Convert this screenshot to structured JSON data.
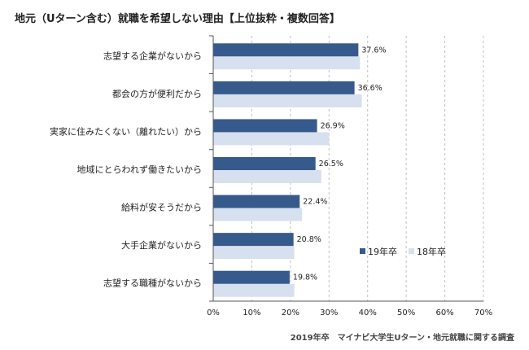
{
  "header": {
    "title": "地元（Uターン含む）就職を希望しない理由【上位抜粋・複数回答】"
  },
  "footer": {
    "source": "2019年卒　マイナビ大学生Uターン・地元就職に関する調査"
  },
  "colors": {
    "series_2019": "#365a8c",
    "series_2018": "#d7e0ee",
    "grid": "#c0c0c0",
    "axis": "#555555"
  },
  "chart_data": {
    "type": "bar",
    "orientation": "horizontal",
    "categories": [
      "志望する企業がないから",
      "都会の方が便利だから",
      "実家に住みたくない（離れたい）から",
      "地域にとらわれず働きたいから",
      "給料が安そうだから",
      "大手企業がないから",
      "志望する職種がないから"
    ],
    "series": [
      {
        "name": "19年卒",
        "values": [
          37.6,
          36.6,
          26.9,
          26.5,
          22.4,
          20.8,
          19.8
        ],
        "data_labels": [
          "37.6%",
          "36.6%",
          "26.9%",
          "26.5%",
          "22.4%",
          "20.8%",
          "19.8%"
        ]
      },
      {
        "name": "18年卒",
        "values": [
          38.0,
          38.5,
          30.0,
          28.0,
          23.0,
          21.0,
          21.0
        ]
      }
    ],
    "xlim": [
      0,
      70
    ],
    "xticks": [
      0,
      10,
      20,
      30,
      40,
      50,
      60,
      70
    ],
    "xtick_labels": [
      "0%",
      "10%",
      "20%",
      "30%",
      "40%",
      "50%",
      "60%",
      "70%"
    ],
    "grid": "vertical dashed",
    "legend_position": "bottom-right"
  }
}
